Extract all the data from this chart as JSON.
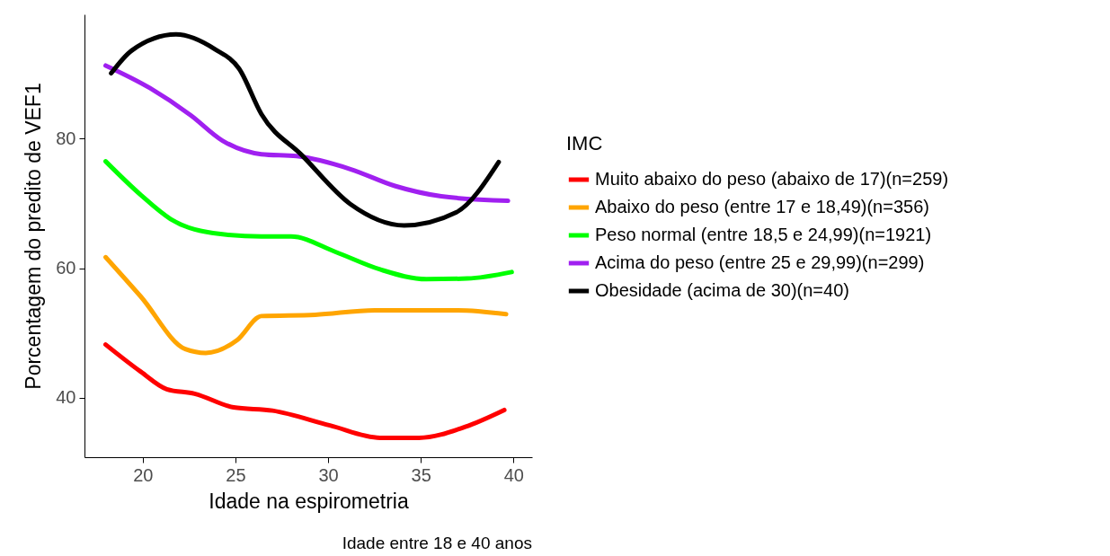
{
  "chart_data": {
    "type": "line",
    "xlabel": "Idade na espirometria",
    "ylabel": "Porcentagem do predito de VEF1",
    "legend_title": "IMC",
    "legend": "right",
    "grid": false,
    "line_style": "solid",
    "marker": "none",
    "xlim": [
      16.86,
      41.0
    ],
    "ylim": [
      30.8,
      99.2
    ],
    "xticks": [
      20,
      25,
      30,
      35,
      40
    ],
    "yticks": [
      40,
      60,
      80
    ],
    "annotations": [
      "Idade entre 18 e 40 anos"
    ],
    "series": [
      {
        "name": "Muito abaixo do peso (abaixo de 17)(n=259)",
        "color": "#ff0000",
        "x": [
          18.0,
          19.9,
          21.3,
          22.8,
          24.9,
          27.0,
          30.1,
          32.8,
          34.9,
          37.4,
          39.5
        ],
        "values": [
          48.2,
          44.0,
          41.3,
          40.6,
          38.5,
          38.0,
          35.7,
          33.8,
          33.8,
          35.5,
          38.1
        ]
      },
      {
        "name": "Abaixo do peso (entre 17 e 18,49)(n=356)",
        "color": "#ffa500",
        "x": [
          18.0,
          19.9,
          22.3,
          23.4,
          25.1,
          26.4,
          29.3,
          32.5,
          37.0,
          39.6
        ],
        "values": [
          61.7,
          55.6,
          47.5,
          46.9,
          48.9,
          52.6,
          52.8,
          53.5,
          53.5,
          52.9
        ]
      },
      {
        "name": "Peso normal (entre 18,5 e 24,99)(n=1921)",
        "color": "#00ff00",
        "x": [
          18.0,
          19.9,
          21.5,
          24.1,
          26.4,
          28.0,
          30.4,
          32.8,
          35.3,
          37.5,
          39.9
        ],
        "values": [
          76.5,
          71.3,
          67.6,
          65.3,
          64.9,
          64.9,
          62.5,
          59.8,
          58.3,
          58.4,
          59.4
        ]
      },
      {
        "name": "Acima do peso (entre 25 e 29,99)(n=299)",
        "color": "#a020f0",
        "x": [
          18.0,
          20.4,
          22.6,
          24.3,
          26.4,
          28.3,
          31.2,
          33.6,
          36.1,
          39.7
        ],
        "values": [
          91.3,
          87.8,
          83.6,
          79.7,
          77.6,
          77.3,
          75.3,
          72.7,
          71.1,
          70.4
        ]
      },
      {
        "name": "Obesidade (acima de 30)(n=40)",
        "color": "#000000",
        "x": [
          18.3,
          19.4,
          21.8,
          23.9,
          25.2,
          26.4,
          28.6,
          31.2,
          34.1,
          36.9,
          39.2
        ],
        "values": [
          90.1,
          93.6,
          96.1,
          93.8,
          90.8,
          83.8,
          77.4,
          69.9,
          66.6,
          68.6,
          76.4
        ]
      }
    ]
  }
}
